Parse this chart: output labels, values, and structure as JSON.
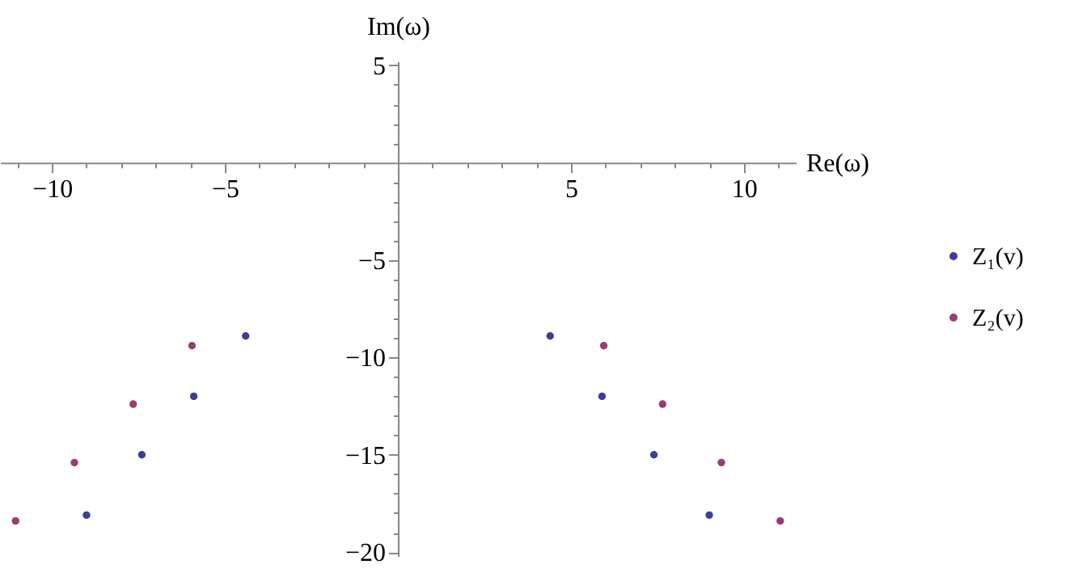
{
  "chart_data": {
    "type": "scatter",
    "xlabel": "Re(ω)",
    "ylabel": "Im(ω)",
    "xlim": [
      -11.5,
      11.5
    ],
    "ylim": [
      -20.2,
      5.2
    ],
    "xticks": [
      {
        "value": -11,
        "label": null
      },
      -10,
      {
        "value": -9,
        "label": null
      },
      {
        "value": -8,
        "label": null
      },
      {
        "value": -7,
        "label": null
      },
      {
        "value": -6,
        "label": null
      },
      -5,
      {
        "value": -4,
        "label": null
      },
      {
        "value": -3,
        "label": null
      },
      {
        "value": -2,
        "label": null
      },
      {
        "value": -1,
        "label": null
      },
      {
        "value": 1,
        "label": null
      },
      {
        "value": 2,
        "label": null
      },
      {
        "value": 3,
        "label": null
      },
      {
        "value": 4,
        "label": null
      },
      5,
      {
        "value": 6,
        "label": null
      },
      {
        "value": 7,
        "label": null
      },
      {
        "value": 8,
        "label": null
      },
      {
        "value": 9,
        "label": null
      },
      10,
      {
        "value": 11,
        "label": null
      }
    ],
    "yticks": [
      -20,
      {
        "value": -19,
        "label": null
      },
      {
        "value": -18,
        "label": null
      },
      {
        "value": -17,
        "label": null
      },
      {
        "value": -16,
        "label": null
      },
      -15,
      {
        "value": -14,
        "label": null
      },
      {
        "value": -13,
        "label": null
      },
      {
        "value": -12,
        "label": null
      },
      {
        "value": -11,
        "label": null
      },
      -10,
      {
        "value": -9,
        "label": null
      },
      {
        "value": -8,
        "label": null
      },
      {
        "value": -7,
        "label": null
      },
      {
        "value": -6,
        "label": null
      },
      -5,
      {
        "value": -4,
        "label": null
      },
      {
        "value": -3,
        "label": null
      },
      {
        "value": -2,
        "label": null
      },
      {
        "value": -1,
        "label": null
      },
      {
        "value": 1,
        "label": null
      },
      {
        "value": 2,
        "label": null
      },
      {
        "value": 3,
        "label": null
      },
      {
        "value": 4,
        "label": null
      },
      5
    ],
    "grid": false,
    "legend": "right",
    "marker": "circle",
    "series": [
      {
        "name": "Z₁(v)",
        "color": "#3d3d99",
        "x": [
          -9.0,
          -7.4,
          -5.9,
          -4.4,
          4.4,
          5.9,
          7.4,
          9.0
        ],
        "values": [
          -18.1,
          -15.0,
          -12.0,
          -8.9,
          -8.9,
          -12.0,
          -15.0,
          -18.1
        ]
      },
      {
        "name": "Z₂(v)",
        "color": "#993d71",
        "x": [
          -11.05,
          -9.35,
          -7.65,
          -5.95,
          5.95,
          7.65,
          9.35,
          11.05
        ],
        "values": [
          -18.4,
          -15.4,
          -12.4,
          -9.4,
          -9.4,
          -12.4,
          -15.4,
          -18.4
        ]
      }
    ]
  }
}
